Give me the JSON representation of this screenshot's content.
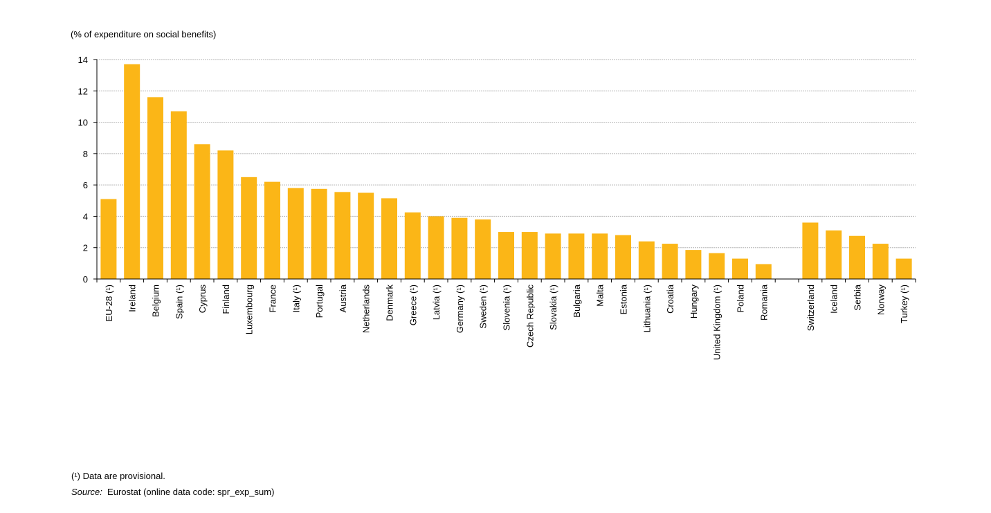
{
  "chart_data": {
    "type": "bar",
    "unit_label": "(% of expenditure on social benefits)",
    "categories": [
      "EU-28 (¹)",
      "Ireland",
      "Belgium",
      "Spain (¹)",
      "Cyprus",
      "Finland",
      "Luxembourg",
      "France",
      "Italy (¹)",
      "Portugal",
      "Austria",
      "Netherlands",
      "Denmark",
      "Greece (¹)",
      "Latvia (¹)",
      "Germany (¹)",
      "Sweden (¹)",
      "Slovenia (¹)",
      "Czech Republic",
      "Slovakia (¹)",
      "Bulgaria",
      "Malta",
      "Estonia",
      "Lithuania (¹)",
      "Croatia",
      "Hungary",
      "United Kingdom (¹)",
      "Poland",
      "Romania",
      "",
      "Switzerland",
      "Iceland",
      "Serbia",
      "Norway",
      "Turkey (¹)"
    ],
    "values": [
      5.1,
      13.7,
      11.6,
      10.7,
      8.6,
      8.2,
      6.5,
      6.2,
      5.8,
      5.75,
      5.55,
      5.5,
      5.15,
      4.25,
      4.0,
      3.9,
      3.8,
      3.0,
      3.0,
      2.9,
      2.9,
      2.9,
      2.8,
      2.4,
      2.25,
      1.85,
      1.65,
      1.3,
      0.95,
      null,
      3.6,
      3.1,
      2.75,
      2.25,
      1.3
    ],
    "yticks": [
      0,
      2,
      4,
      6,
      8,
      10,
      12,
      14
    ],
    "ylim": [
      0,
      14
    ],
    "grid": true,
    "bar_color": "#fbb617",
    "grid_color": "#b4b4b4"
  },
  "footnote": "(¹) Data are provisional.",
  "source": {
    "label": "Source:",
    "text": "Eurostat (online data code: spr_exp_sum)"
  }
}
